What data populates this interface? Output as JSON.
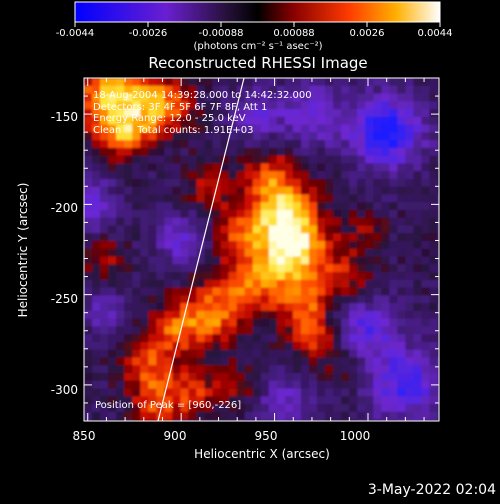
{
  "colorbar": {
    "tick_labels": [
      "-0.0044",
      "-0.0026",
      "-0.00088",
      "0.00088",
      "0.0026",
      "0.0044"
    ],
    "unit_label": "(photons cm⁻² s⁻¹ asec⁻²)"
  },
  "plot": {
    "title": "Reconstructed RHESSI Image",
    "xlabel": "Heliocentric X (arcsec)",
    "ylabel": "Heliocentric Y (arcsec)",
    "x_ticks": [
      "850",
      "900",
      "950",
      "1000"
    ],
    "y_ticks": [
      "-150",
      "-200",
      "-250",
      "-300"
    ]
  },
  "info": {
    "line1": "18-Aug-2004 14:39:28.000 to 14:42:32.000",
    "line2": "Detectors: 3F 4F 5F 6F 7F 8F, Att 1",
    "line3": "Energy Range: 12.0 - 25.0 keV",
    "line4": "Clean     Total counts: 1.91E+03",
    "peak": "Position of Peak = [960,-226]"
  },
  "footer": {
    "date": "3-May-2022 02:04"
  },
  "chart_data": {
    "type": "heatmap",
    "title": "Reconstructed RHESSI Image",
    "xlabel": "Heliocentric X (arcsec)",
    "ylabel": "Heliocentric Y (arcsec)",
    "xlim": [
      848,
      1038
    ],
    "ylim": [
      -320,
      -130
    ],
    "colorbar_range": [
      -0.0044,
      0.0044
    ],
    "peak_position": [
      960,
      -226
    ],
    "colormap_colors": [
      "#2020ff",
      "#7a1fd6",
      "#2a1045",
      "#000000",
      "#5a0000",
      "#cc0000",
      "#ff6a00",
      "#ffd000",
      "#ffffff"
    ]
  }
}
